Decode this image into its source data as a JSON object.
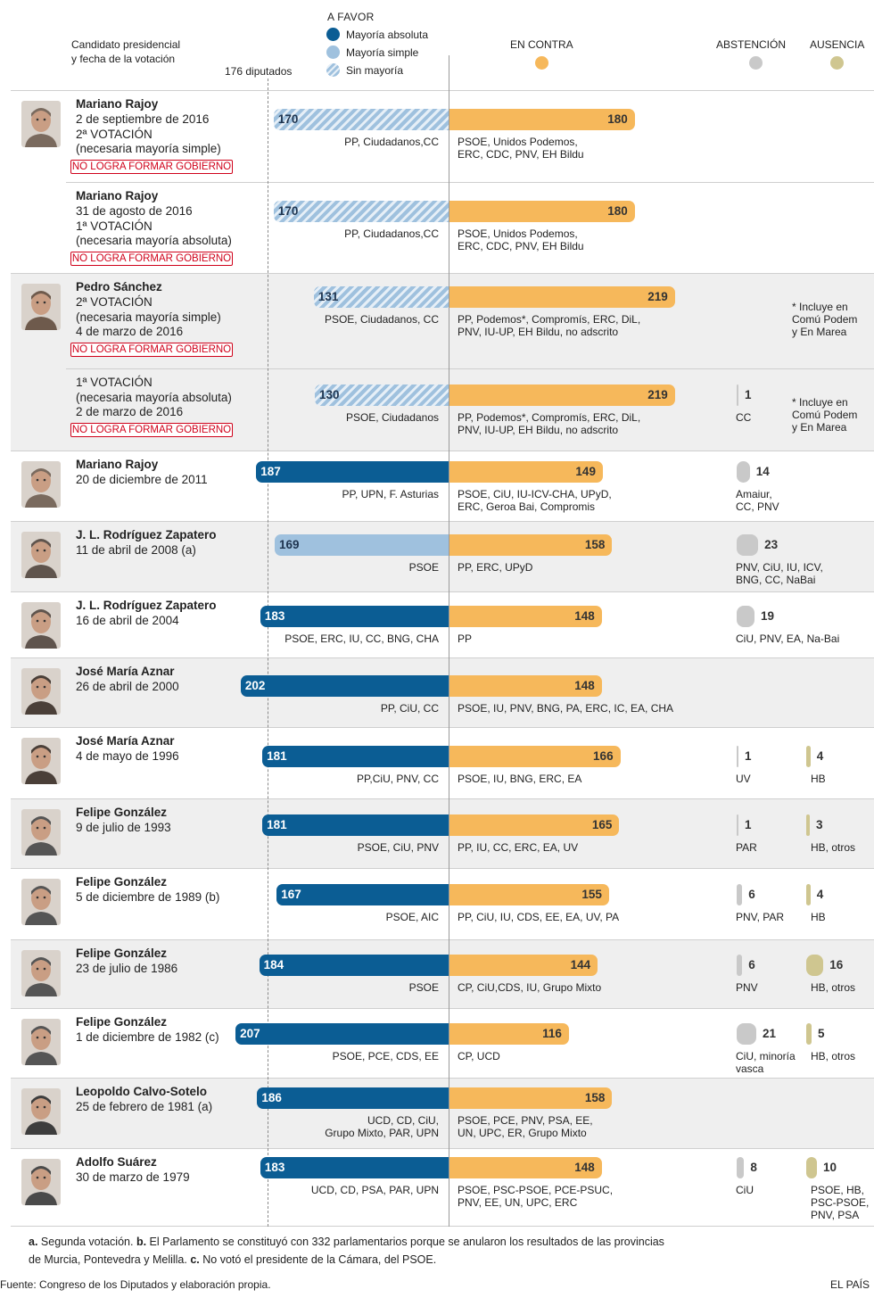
{
  "header": {
    "candidate_label": [
      "Candidato presidencial",
      "y fecha de la votación"
    ],
    "threshold_label": "176 diputados",
    "favor_title": "A FAVOR",
    "legend_absolute": "Mayoría absoluta",
    "legend_simple": "Mayoría simple",
    "legend_none": "Sin mayoría",
    "contra_title": "EN CONTRA",
    "abstention_title": "ABSTENCIÓN",
    "absence_title": "AUSENCIA"
  },
  "colors": {
    "absolute": "#0b5d94",
    "simple": "#9fc1de",
    "contra": "#f6b85b",
    "abstention": "#c9c9c9",
    "absence": "#cfc690",
    "badge": "#d0021b"
  },
  "chart_data": {
    "type": "bar",
    "threshold": 176,
    "rows": [
      {
        "name": "Mariano Rajoy",
        "lines": [
          "2 de septiembre de 2016",
          "2ª VOTACIÓN",
          "(necesaria mayoría simple)"
        ],
        "badge": "NO LOGRA FORMAR GOBIERNO",
        "favor": 170,
        "favor_type": "none",
        "favor_parties": [
          "PP, Ciudadanos,CC"
        ],
        "contra": 180,
        "contra_parties": [
          "PSOE, Unidos Podemos,",
          "ERC, CDC, PNV, EH Bildu"
        ],
        "abstention": null,
        "abstention_parties": [],
        "absence": null,
        "absence_parties": [],
        "note": [],
        "portrait": "rajoy-icon"
      },
      {
        "name": "Mariano Rajoy",
        "lines": [
          "31 de agosto de 2016",
          "1ª VOTACIÓN",
          "(necesaria mayoría absoluta)"
        ],
        "badge": "NO LOGRA FORMAR GOBIERNO",
        "favor": 170,
        "favor_type": "none",
        "favor_parties": [
          "PP, Ciudadanos,CC"
        ],
        "contra": 180,
        "contra_parties": [
          "PSOE, Unidos Podemos,",
          "ERC, CDC, PNV, EH Bildu"
        ],
        "abstention": null,
        "abstention_parties": [],
        "absence": null,
        "absence_parties": [],
        "note": [],
        "portrait": null
      },
      {
        "name": "Pedro Sánchez",
        "lines": [
          "2ª VOTACIÓN",
          "(necesaria mayoría simple)",
          "4 de marzo de 2016"
        ],
        "badge": "NO LOGRA FORMAR GOBIERNO",
        "favor": 131,
        "favor_type": "none",
        "favor_parties": [
          "PSOE, Ciudadanos, CC"
        ],
        "contra": 219,
        "contra_parties": [
          "PP, Podemos*, Compromís, ERC, DiL,",
          "PNV, IU-UP, EH Bildu, no adscrito"
        ],
        "abstention": null,
        "abstention_parties": [],
        "absence": null,
        "absence_parties": [],
        "note": [
          "* Incluye en",
          "Comú Podem",
          "y En Marea"
        ],
        "portrait": "sanchez-icon"
      },
      {
        "name": "",
        "lines": [
          "1ª VOTACIÓN",
          "(necesaria mayoría absoluta)",
          "2 de marzo de 2016"
        ],
        "badge": "NO LOGRA FORMAR GOBIERNO",
        "favor": 130,
        "favor_type": "none",
        "favor_parties": [
          "PSOE, Ciudadanos"
        ],
        "contra": 219,
        "contra_parties": [
          "PP, Podemos*, Compromís, ERC, DiL,",
          "PNV, IU-UP, EH Bildu, no adscrito"
        ],
        "abstention": 1,
        "abstention_parties": [
          "CC"
        ],
        "absence": null,
        "absence_parties": [],
        "note": [
          "* Incluye en",
          "Comú Podem",
          "y En Marea"
        ],
        "portrait": null
      },
      {
        "name": "Mariano Rajoy",
        "lines": [
          "20 de diciembre de 2011"
        ],
        "badge": "",
        "favor": 187,
        "favor_type": "absolute",
        "favor_parties": [
          "PP, UPN, F. Asturias"
        ],
        "contra": 149,
        "contra_parties": [
          "PSOE, CiU, IU-ICV-CHA, UPyD,",
          "ERC, Geroa Bai, Compromis"
        ],
        "abstention": 14,
        "abstention_parties": [
          "Amaiur,",
          "CC, PNV"
        ],
        "absence": null,
        "absence_parties": [],
        "note": [],
        "portrait": "rajoy-icon"
      },
      {
        "name": "J. L. Rodríguez Zapatero",
        "lines": [
          "11 de abril de 2008 (a)"
        ],
        "badge": "",
        "favor": 169,
        "favor_type": "simple",
        "favor_parties": [
          "PSOE"
        ],
        "contra": 158,
        "contra_parties": [
          "PP, ERC, UPyD"
        ],
        "abstention": 23,
        "abstention_parties": [
          "PNV, CiU, IU, ICV,",
          "BNG, CC, NaBai"
        ],
        "absence": null,
        "absence_parties": [],
        "note": [],
        "portrait": "zapatero-icon"
      },
      {
        "name": "J. L. Rodríguez Zapatero",
        "lines": [
          "16 de abril de 2004"
        ],
        "badge": "",
        "favor": 183,
        "favor_type": "absolute",
        "favor_parties": [
          "PSOE, ERC, IU, CC, BNG, CHA"
        ],
        "contra": 148,
        "contra_parties": [
          "PP"
        ],
        "abstention": 19,
        "abstention_parties": [
          "CiU, PNV, EA, Na-Bai"
        ],
        "absence": null,
        "absence_parties": [],
        "note": [],
        "portrait": "zapatero-icon"
      },
      {
        "name": "José María Aznar",
        "lines": [
          "26 de abril de 2000"
        ],
        "badge": "",
        "favor": 202,
        "favor_type": "absolute",
        "favor_parties": [
          "PP, CiU, CC"
        ],
        "contra": 148,
        "contra_parties": [
          "PSOE, IU, PNV, BNG, PA, ERC, IC, EA, CHA"
        ],
        "abstention": null,
        "abstention_parties": [],
        "absence": null,
        "absence_parties": [],
        "note": [],
        "portrait": "aznar-icon"
      },
      {
        "name": "José María Aznar",
        "lines": [
          "4 de mayo de 1996"
        ],
        "badge": "",
        "favor": 181,
        "favor_type": "absolute",
        "favor_parties": [
          "PP,CiU, PNV, CC"
        ],
        "contra": 166,
        "contra_parties": [
          "PSOE, IU, BNG, ERC, EA"
        ],
        "abstention": 1,
        "abstention_parties": [
          "UV"
        ],
        "absence": 4,
        "absence_parties": [
          "HB"
        ],
        "note": [],
        "portrait": "aznar-icon"
      },
      {
        "name": "Felipe González",
        "lines": [
          "9 de julio de 1993"
        ],
        "badge": "",
        "favor": 181,
        "favor_type": "absolute",
        "favor_parties": [
          "PSOE, CiU, PNV"
        ],
        "contra": 165,
        "contra_parties": [
          "PP, IU, CC, ERC, EA, UV"
        ],
        "abstention": 1,
        "abstention_parties": [
          "PAR"
        ],
        "absence": 3,
        "absence_parties": [
          "HB, otros"
        ],
        "note": [],
        "portrait": "gonzalez-icon"
      },
      {
        "name": "Felipe González",
        "lines": [
          "5 de diciembre de 1989 (b)"
        ],
        "badge": "",
        "favor": 167,
        "favor_type": "absolute",
        "favor_parties": [
          "PSOE, AIC"
        ],
        "contra": 155,
        "contra_parties": [
          "PP, CiU, IU, CDS, EE, EA, UV, PA"
        ],
        "abstention": 6,
        "abstention_parties": [
          "PNV, PAR"
        ],
        "absence": 4,
        "absence_parties": [
          "HB"
        ],
        "note": [],
        "portrait": "gonzalez-icon"
      },
      {
        "name": "Felipe González",
        "lines": [
          "23 de julio de 1986"
        ],
        "badge": "",
        "favor": 184,
        "favor_type": "absolute",
        "favor_parties": [
          "PSOE"
        ],
        "contra": 144,
        "contra_parties": [
          "CP, CiU,CDS, IU, Grupo Mixto"
        ],
        "abstention": 6,
        "abstention_parties": [
          "PNV"
        ],
        "absence": 16,
        "absence_parties": [
          "HB, otros"
        ],
        "note": [],
        "portrait": "gonzalez-icon"
      },
      {
        "name": "Felipe González",
        "lines": [
          "1 de diciembre de 1982 (c)"
        ],
        "badge": "",
        "favor": 207,
        "favor_type": "absolute",
        "favor_parties": [
          "PSOE, PCE, CDS, EE"
        ],
        "contra": 116,
        "contra_parties": [
          "CP, UCD"
        ],
        "abstention": 21,
        "abstention_parties": [
          "CiU, minoría",
          "vasca"
        ],
        "absence": 5,
        "absence_parties": [
          "HB, otros"
        ],
        "note": [],
        "portrait": "gonzalez-icon"
      },
      {
        "name": "Leopoldo Calvo-Sotelo",
        "lines": [
          "25 de febrero de 1981 (a)"
        ],
        "badge": "",
        "favor": 186,
        "favor_type": "absolute",
        "favor_parties": [
          "UCD, CD, CiU,",
          "Grupo Mixto, PAR, UPN"
        ],
        "contra": 158,
        "contra_parties": [
          "PSOE, PCE, PNV, PSA, EE,",
          "UN, UPC, ER, Grupo Mixto"
        ],
        "abstention": null,
        "abstention_parties": [],
        "absence": null,
        "absence_parties": [],
        "note": [],
        "portrait": "calvo-sotelo-icon"
      },
      {
        "name": "Adolfo Suárez",
        "lines": [
          "30 de marzo de 1979"
        ],
        "badge": "",
        "favor": 183,
        "favor_type": "absolute",
        "favor_parties": [
          "UCD, CD, PSA, PAR, UPN"
        ],
        "contra": 148,
        "contra_parties": [
          "PSOE, PSC-PSOE, PCE-PSUC,",
          "PNV, EE, UN, UPC, ERC"
        ],
        "abstention": 8,
        "abstention_parties": [
          "CiU"
        ],
        "absence": 10,
        "absence_parties": [
          "PSOE, HB,",
          "PSC-PSOE,",
          "PNV, PSA"
        ],
        "note": [],
        "portrait": "suarez-icon"
      }
    ]
  },
  "footer": {
    "notes_line1_parts": [
      {
        "b": true,
        "t": "a."
      },
      {
        "b": false,
        "t": " Segunda votación. "
      },
      {
        "b": true,
        "t": "b."
      },
      {
        "b": false,
        "t": " El Parlamento se constituyó con 332 parlamentarios porque se anularon los resultados de las provincias"
      }
    ],
    "notes_line2_parts": [
      {
        "b": false,
        "t": "de Murcia, Pontevedra y Melilla. "
      },
      {
        "b": true,
        "t": "c."
      },
      {
        "b": false,
        "t": " No votó el presidente de la Cámara, del PSOE."
      }
    ],
    "source": "Fuente: Congreso de los Diputados y elaboración propia.",
    "credit": "EL PAÍS"
  }
}
